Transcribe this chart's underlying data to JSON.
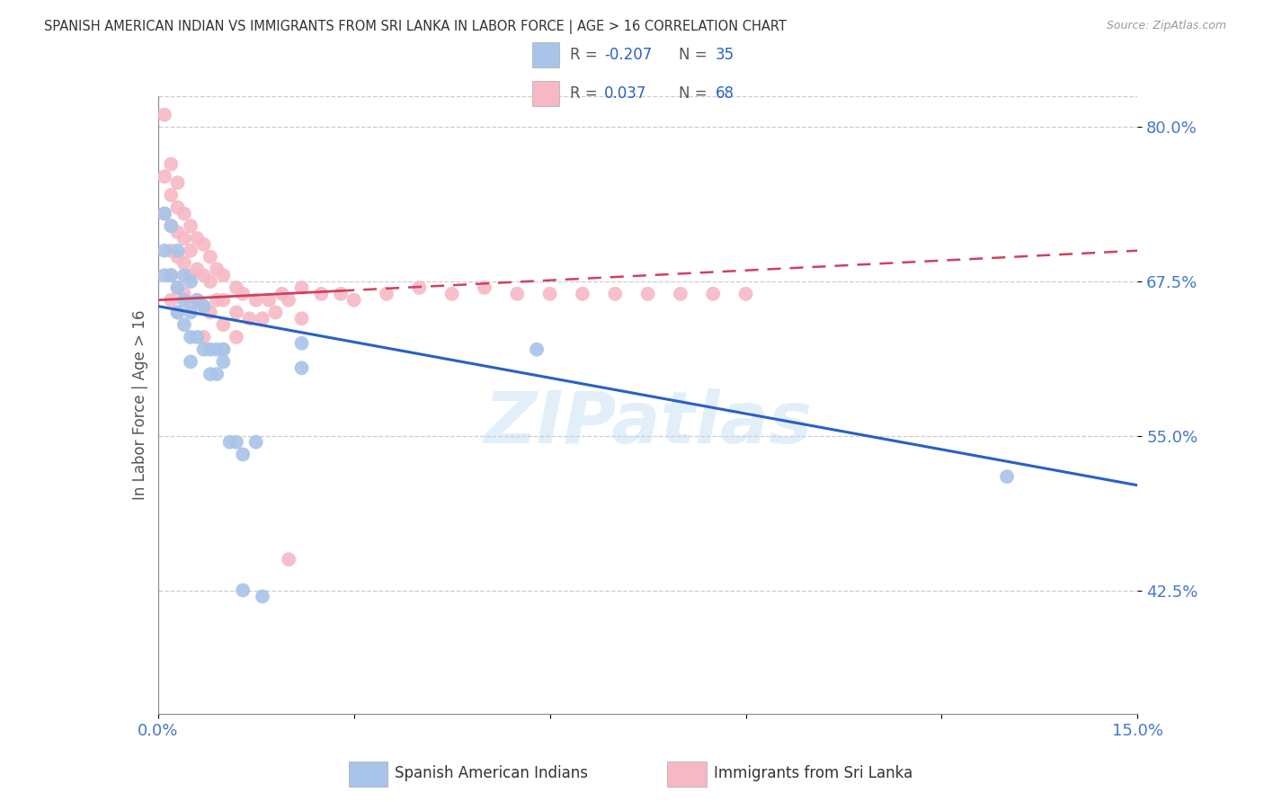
{
  "title": "SPANISH AMERICAN INDIAN VS IMMIGRANTS FROM SRI LANKA IN LABOR FORCE | AGE > 16 CORRELATION CHART",
  "source": "Source: ZipAtlas.com",
  "ylabel": "In Labor Force | Age > 16",
  "xlim": [
    0.0,
    0.15
  ],
  "ylim": [
    0.325,
    0.825
  ],
  "xticks": [
    0.0,
    0.03,
    0.06,
    0.09,
    0.12,
    0.15
  ],
  "xticklabels": [
    "0.0%",
    "",
    "",
    "",
    "",
    "15.0%"
  ],
  "yticks": [
    0.425,
    0.55,
    0.675,
    0.8
  ],
  "yticklabels": [
    "42.5%",
    "55.0%",
    "67.5%",
    "80.0%"
  ],
  "blue_color": "#a8c4e8",
  "pink_color": "#f5b8c4",
  "blue_line_color": "#2860c8",
  "pink_line_color": "#d04060",
  "watermark": "ZIPatlas",
  "legend_label_blue": "Spanish American Indians",
  "legend_label_pink": "Immigrants from Sri Lanka",
  "blue_R": "-0.207",
  "blue_N": "35",
  "pink_R": "0.037",
  "pink_N": "68",
  "blue_line_x0": 0.0,
  "blue_line_y0": 0.655,
  "blue_line_x1": 0.15,
  "blue_line_y1": 0.51,
  "pink_line_x0": 0.0,
  "pink_line_y0": 0.66,
  "pink_line_x1": 0.15,
  "pink_line_y1": 0.7,
  "blue_scatter_x": [
    0.001,
    0.001,
    0.001,
    0.002,
    0.002,
    0.003,
    0.003,
    0.003,
    0.004,
    0.004,
    0.004,
    0.005,
    0.005,
    0.005,
    0.005,
    0.006,
    0.006,
    0.007,
    0.007,
    0.008,
    0.008,
    0.009,
    0.009,
    0.01,
    0.01,
    0.011,
    0.012,
    0.013,
    0.015,
    0.016,
    0.022,
    0.022,
    0.058,
    0.013,
    0.13
  ],
  "blue_scatter_y": [
    0.73,
    0.7,
    0.68,
    0.72,
    0.68,
    0.7,
    0.67,
    0.65,
    0.68,
    0.66,
    0.64,
    0.675,
    0.65,
    0.63,
    0.61,
    0.66,
    0.63,
    0.655,
    0.62,
    0.62,
    0.6,
    0.62,
    0.6,
    0.62,
    0.61,
    0.545,
    0.545,
    0.535,
    0.545,
    0.42,
    0.625,
    0.605,
    0.62,
    0.425,
    0.517
  ],
  "pink_scatter_x": [
    0.001,
    0.001,
    0.001,
    0.002,
    0.002,
    0.002,
    0.002,
    0.002,
    0.002,
    0.003,
    0.003,
    0.003,
    0.003,
    0.003,
    0.003,
    0.004,
    0.004,
    0.004,
    0.004,
    0.005,
    0.005,
    0.005,
    0.005,
    0.006,
    0.006,
    0.006,
    0.007,
    0.007,
    0.007,
    0.007,
    0.008,
    0.008,
    0.008,
    0.009,
    0.009,
    0.01,
    0.01,
    0.01,
    0.01,
    0.012,
    0.012,
    0.012,
    0.013,
    0.014,
    0.015,
    0.016,
    0.017,
    0.018,
    0.019,
    0.02,
    0.022,
    0.022,
    0.025,
    0.028,
    0.03,
    0.035,
    0.04,
    0.045,
    0.05,
    0.055,
    0.06,
    0.065,
    0.07,
    0.075,
    0.08,
    0.085,
    0.09,
    0.02
  ],
  "pink_scatter_y": [
    0.81,
    0.76,
    0.73,
    0.77,
    0.745,
    0.72,
    0.7,
    0.68,
    0.66,
    0.755,
    0.735,
    0.715,
    0.695,
    0.67,
    0.65,
    0.73,
    0.71,
    0.69,
    0.665,
    0.72,
    0.7,
    0.68,
    0.655,
    0.71,
    0.685,
    0.66,
    0.705,
    0.68,
    0.655,
    0.63,
    0.695,
    0.675,
    0.65,
    0.685,
    0.66,
    0.68,
    0.66,
    0.64,
    0.62,
    0.67,
    0.65,
    0.63,
    0.665,
    0.645,
    0.66,
    0.645,
    0.66,
    0.65,
    0.665,
    0.66,
    0.67,
    0.645,
    0.665,
    0.665,
    0.66,
    0.665,
    0.67,
    0.665,
    0.67,
    0.665,
    0.665,
    0.665,
    0.665,
    0.665,
    0.665,
    0.665,
    0.665,
    0.45
  ]
}
